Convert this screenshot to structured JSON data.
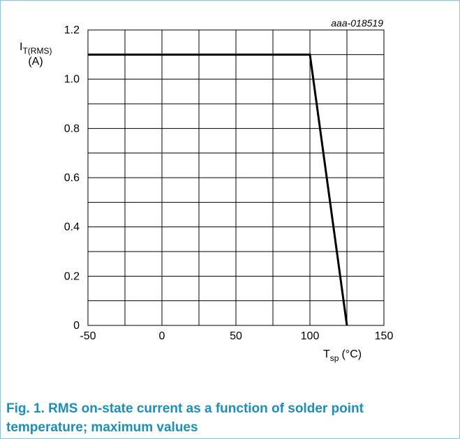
{
  "figure_code": "aaa-018519",
  "caption": "Fig. 1. RMS on-state current as a function of solder point temperature; maximum values",
  "caption_color": "#1a8fb9",
  "border_color": "#7fc6df",
  "chart_data": {
    "type": "line",
    "ylabel": {
      "main": "I",
      "sub": "T(RMS)",
      "unit": "(A)"
    },
    "xlabel": {
      "main": "T",
      "sub": "sp",
      "unit": "(°C)"
    },
    "xlim": [
      -50,
      150
    ],
    "ylim": [
      0,
      1.2
    ],
    "x_ticks": [
      -50,
      0,
      50,
      100,
      150
    ],
    "x_tick_labels": [
      "-50",
      "0",
      "50",
      "100",
      "150"
    ],
    "x_grid_step": 25,
    "y_ticks": [
      0,
      0.2,
      0.4,
      0.6,
      0.8,
      1.0,
      1.2
    ],
    "y_tick_labels": [
      "0",
      "0.2",
      "0.4",
      "0.6",
      "0.8",
      "1.0",
      "1.2"
    ],
    "y_grid_step": 0.1,
    "grid": true,
    "series": [
      {
        "x": [
          -50,
          100,
          125
        ],
        "y": [
          1.1,
          1.1,
          0
        ]
      }
    ]
  }
}
